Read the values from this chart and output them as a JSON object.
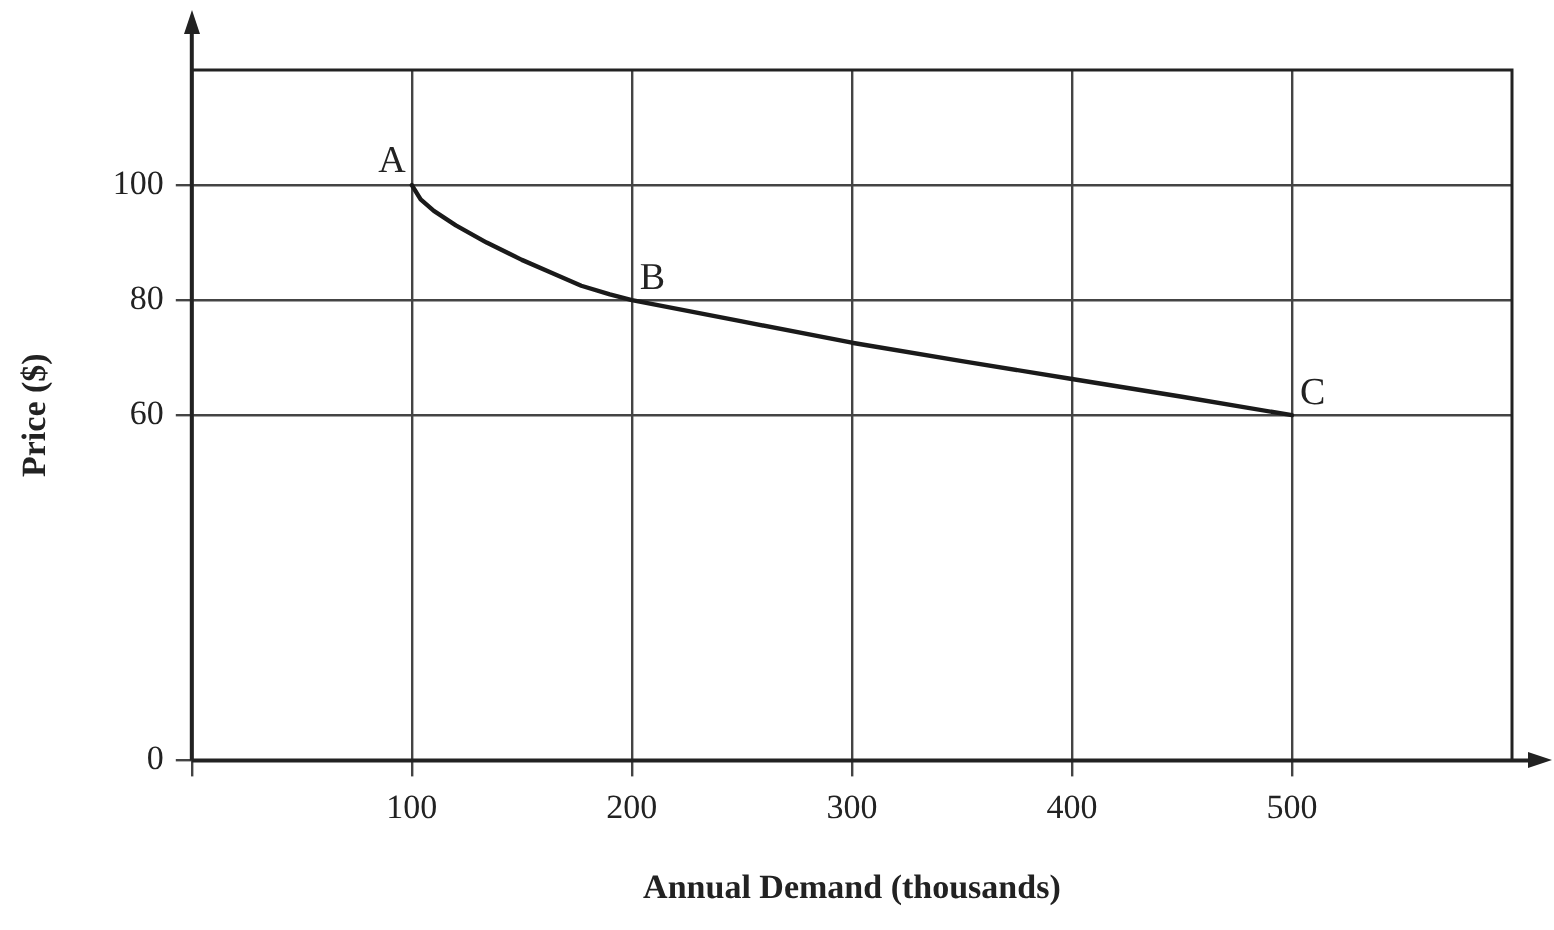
{
  "chart_data": {
    "type": "line",
    "xlabel": "Annual Demand (thousands)",
    "ylabel": "Price ($)",
    "series": [
      {
        "color": "#1a1a1a",
        "x": [
          100,
          104,
          110,
          120,
          134,
          150,
          165,
          177,
          190,
          200,
          250,
          300,
          350,
          400,
          450,
          500
        ],
        "values": [
          100,
          97.5,
          95.5,
          93,
          90,
          87,
          84.5,
          82.5,
          81,
          80,
          76.3,
          72.6,
          69.4,
          66.3,
          63.2,
          60
        ]
      }
    ],
    "xlim": [
      0,
      600
    ],
    "xticks": [
      {
        "value": 0,
        "label": null
      },
      100,
      200,
      300,
      400,
      500
    ],
    "ylim": [
      0,
      120
    ],
    "yticks": [
      0,
      60,
      80,
      100
    ],
    "annotations": [
      {
        "text": "A",
        "x": 100,
        "y": 100
      },
      {
        "text": "B",
        "x": 200,
        "y": 80
      },
      {
        "text": "C",
        "x": 500,
        "y": 60
      }
    ],
    "grid": true,
    "legend": false,
    "marker": "none",
    "line_style": "solid"
  }
}
